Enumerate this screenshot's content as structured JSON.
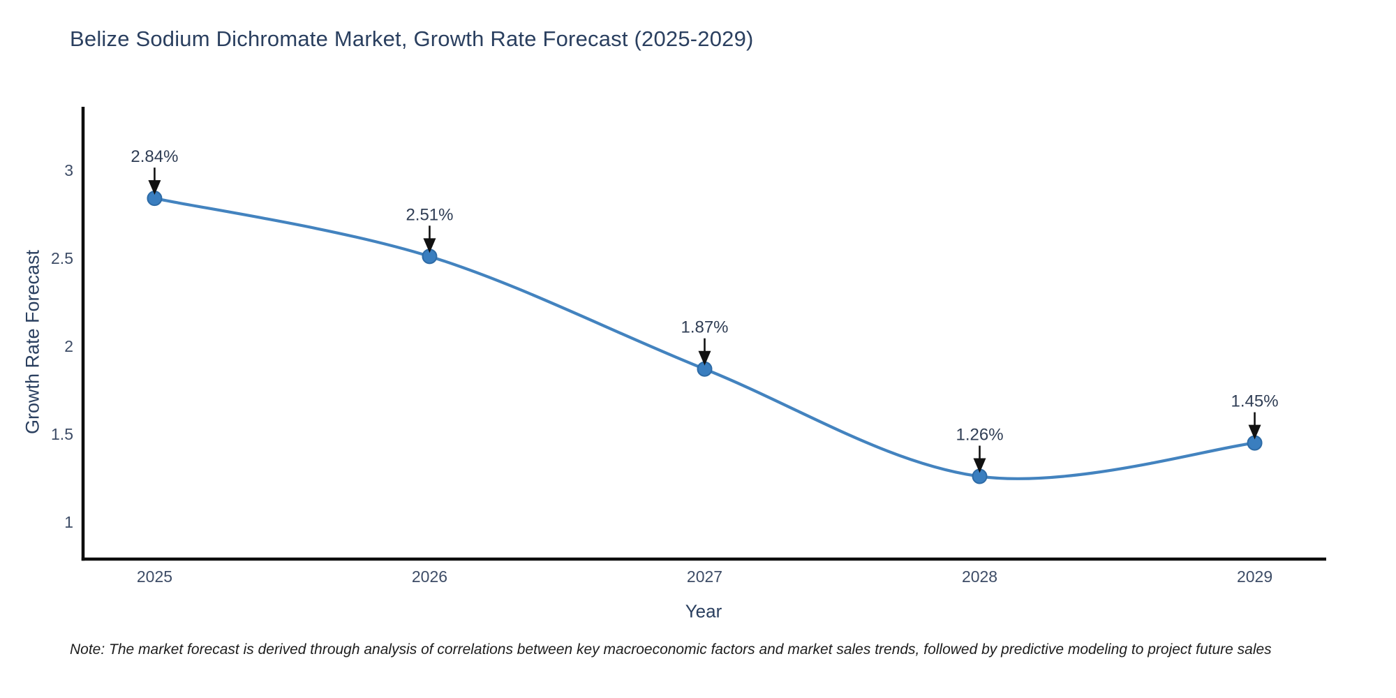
{
  "note": "Note: The market forecast is derived through analysis of correlations between key macroeconomic factors and market sales trends, followed by predictive modeling to project future sales",
  "chart_data": {
    "type": "line",
    "title": "Belize Sodium Dichromate Market, Growth Rate Forecast (2025-2029)",
    "xlabel": "Year",
    "ylabel": "Growth Rate Forecast",
    "x": [
      2025,
      2026,
      2027,
      2028,
      2029
    ],
    "series": [
      {
        "name": "Growth Rate Forecast",
        "values": [
          2.84,
          2.51,
          1.87,
          1.26,
          1.45
        ],
        "point_labels": [
          "2.84%",
          "2.51%",
          "1.87%",
          "1.26%",
          "1.45%"
        ]
      }
    ],
    "xticks": [
      "2025",
      "2026",
      "2027",
      "2028",
      "2029"
    ],
    "yticks": [
      1,
      1.5,
      2,
      2.5,
      3
    ],
    "ytick_labels": [
      "1",
      "1.5",
      "2",
      "2.5",
      "3"
    ],
    "xlim": [
      2024.74,
      2029.26
    ],
    "ylim": [
      0.79,
      3.36
    ],
    "line_shape": "spline",
    "grid": false,
    "legend": "none",
    "colors": {
      "line": "#4383bf",
      "marker": "#3a7ebf",
      "marker_edge": "#2e6ba6",
      "axis_line": "#0d0d0d",
      "title_text": "#2a3f5f",
      "tick_text": "#3d4c66",
      "annotation_text": "#2f3d54",
      "arrow": "#111111",
      "background": "#ffffff"
    }
  }
}
